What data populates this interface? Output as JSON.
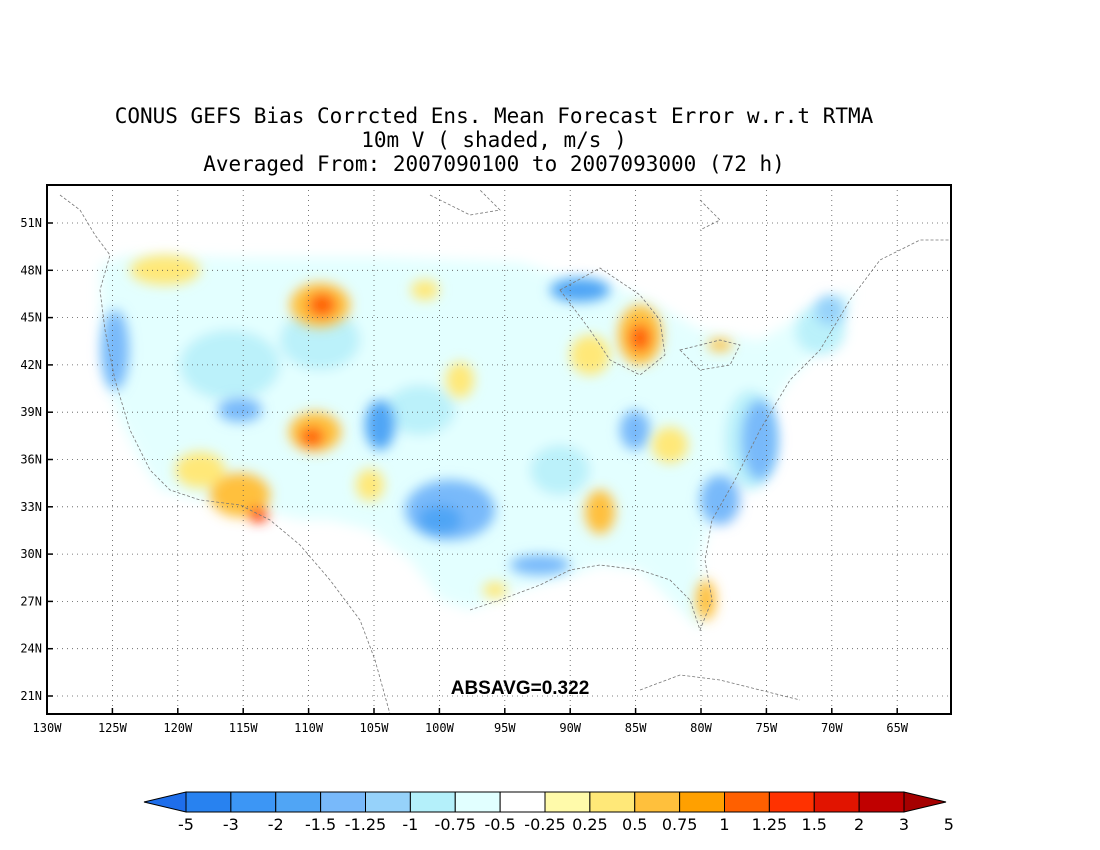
{
  "title_lines": [
    "CONUS GEFS Bias Corrcted Ens. Mean Forecast Error w.r.t RTMA",
    "10m V ( shaded, m/s )",
    "Averaged From: 2007090100 to 2007093000 (72 h)"
  ],
  "stat_label": "ABSAVG=0.322",
  "lat_ticks": [
    "51N",
    "48N",
    "45N",
    "42N",
    "39N",
    "36N",
    "33N",
    "30N",
    "27N",
    "24N",
    "21N"
  ],
  "lon_ticks": [
    "130W",
    "125W",
    "120W",
    "115W",
    "110W",
    "105W",
    "100W",
    "95W",
    "90W",
    "85W",
    "80W",
    "75W",
    "70W",
    "65W"
  ],
  "colorbar": {
    "colors": [
      "#1e6eeb",
      "#2882f0",
      "#3c96f5",
      "#50a5f5",
      "#78b9fa",
      "#96d2fa",
      "#b4f0fa",
      "#e1ffff",
      "#ffffff",
      "#fffaaa",
      "#ffe878",
      "#ffc03c",
      "#ffa000",
      "#ff6000",
      "#ff3200",
      "#e11400",
      "#c00000",
      "#a50000"
    ],
    "labels": [
      "-5",
      "-3",
      "-2",
      "-1.5",
      "-1.25",
      "-1",
      "-0.75",
      "-0.5",
      "-0.25",
      "0.25",
      "0.5",
      "0.75",
      "1",
      "1.25",
      "1.5",
      "2",
      "3",
      "5"
    ]
  },
  "map_colors": {
    "coast": "#777777",
    "grid": "#555555"
  }
}
